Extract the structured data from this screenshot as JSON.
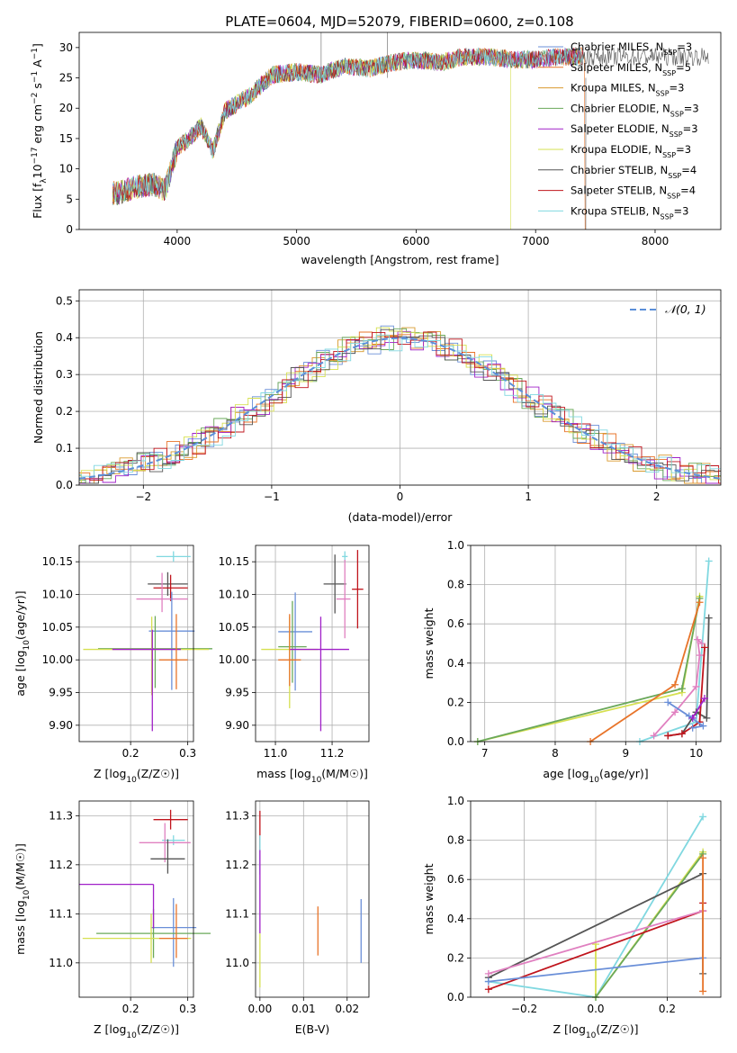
{
  "figure_title": "PLATE=0604, MJD=52079, FIBERID=0600, z=0.108",
  "colors": {
    "chabrier_miles": "#6a8fd8",
    "salpeter_miles": "#e8742a",
    "kroupa_miles": "#d99a2e",
    "chabrier_elodie": "#6aa85a",
    "salpeter_elodie": "#a020c8",
    "kroupa_elodie": "#d6e050",
    "chabrier_stelib": "#555555",
    "salpeter_stelib": "#c0141c",
    "kroupa_stelib": "#80d8e0",
    "pink": "#e080c0",
    "normal_curve": "#5b8fd9",
    "grid": "#b0b0b0"
  },
  "chart_data": [
    {
      "id": "spectrum",
      "type": "line",
      "title": "PLATE=0604, MJD=52079, FIBERID=0600, z=0.108",
      "xlabel": "wavelength [Angstrom, rest frame]",
      "ylabel": "Flux [f_λ 10^-17 erg cm^-2 s^-1 A^-1]",
      "xlim": [
        3180,
        8550
      ],
      "ylim": [
        0,
        32.5
      ],
      "xticks": [
        4000,
        5000,
        6000,
        7000,
        8000
      ],
      "yticks": [
        0,
        5,
        10,
        15,
        20,
        25,
        30
      ],
      "grid": false,
      "legend_position": "top-right",
      "legend": [
        {
          "label": "Chabrier MILES, N",
          "sub": "SSP",
          "tail": "=3",
          "color_key": "chabrier_miles"
        },
        {
          "label": "Salpeter MILES, N",
          "sub": "SSP",
          "tail": "=5",
          "color_key": "salpeter_miles"
        },
        {
          "label": "Kroupa MILES, N",
          "sub": "SSP",
          "tail": "=3",
          "color_key": "kroupa_miles"
        },
        {
          "label": "Chabrier ELODIE, N",
          "sub": "SSP",
          "tail": "=3",
          "color_key": "chabrier_elodie"
        },
        {
          "label": "Salpeter ELODIE, N",
          "sub": "SSP",
          "tail": "=3",
          "color_key": "salpeter_elodie"
        },
        {
          "label": "Kroupa ELODIE, N",
          "sub": "SSP",
          "tail": "=3",
          "color_key": "kroupa_elodie"
        },
        {
          "label": "Chabrier STELIB, N",
          "sub": "SSP",
          "tail": "=4",
          "color_key": "chabrier_stelib"
        },
        {
          "label": "Salpeter STELIB, N",
          "sub": "SSP",
          "tail": "=4",
          "color_key": "salpeter_stelib"
        },
        {
          "label": "Kroupa STELIB, N",
          "sub": "SSP",
          "tail": "=3",
          "color_key": "kroupa_stelib"
        }
      ],
      "data_envelope": {
        "wavelength": [
          3500,
          3650,
          3800,
          3900,
          4000,
          4100,
          4200,
          4300,
          4400,
          4600,
          4800,
          5000,
          5200,
          5400,
          5600,
          5800,
          6000,
          6200,
          6400,
          6600,
          6800,
          7000,
          7200,
          7400
        ],
        "flux": [
          6.0,
          7.0,
          7.5,
          6.5,
          13.5,
          15.0,
          17.0,
          13.0,
          19.5,
          22.0,
          25.5,
          26.0,
          25.5,
          27.0,
          26.5,
          27.5,
          28.0,
          27.5,
          28.5,
          28.5,
          28.0,
          28.0,
          28.5,
          28.5
        ]
      }
    },
    {
      "id": "residuals",
      "type": "bar",
      "xlabel": "(data-model)/error",
      "ylabel": "Normed distribution",
      "xlim": [
        -2.5,
        2.5
      ],
      "ylim": [
        0,
        0.53
      ],
      "xticks": [
        -2,
        -1,
        0,
        1,
        2
      ],
      "yticks": [
        0.0,
        0.1,
        0.2,
        0.3,
        0.4,
        0.5
      ],
      "grid": true,
      "legend_position": "top-right",
      "legend_label": "𝒩(0, 1)",
      "bin_width": 0.1,
      "series_color_keys": [
        "chabrier_miles",
        "salpeter_miles",
        "kroupa_miles",
        "chabrier_elodie",
        "salpeter_elodie",
        "kroupa_elodie",
        "chabrier_stelib",
        "salpeter_stelib",
        "kroupa_stelib"
      ]
    },
    {
      "id": "age_vs_Z",
      "type": "scatter",
      "xlabel": "Z [log10(Z/Z☉)]",
      "ylabel": "age  [log10(age/yr)]",
      "xlim": [
        0.11,
        0.31
      ],
      "ylim": [
        9.875,
        10.175
      ],
      "xticks": [
        0.2,
        0.3
      ],
      "yticks": [
        9.9,
        9.95,
        10.0,
        10.05,
        10.1,
        10.15
      ],
      "grid": true,
      "points": [
        {
          "x": 0.275,
          "xerr": [
            0.03,
            0.03
          ],
          "y": 10.158,
          "yerr": [
            0.008,
            0.008
          ],
          "color_key": "kroupa_stelib"
        },
        {
          "x": 0.265,
          "xerr": [
            0.035,
            0.035
          ],
          "y": 10.116,
          "yerr": [
            0.018,
            0.018
          ],
          "color_key": "chabrier_stelib"
        },
        {
          "x": 0.27,
          "xerr": [
            0.03,
            0.03
          ],
          "y": 10.11,
          "yerr": [
            0.02,
            0.02
          ],
          "color_key": "salpeter_stelib"
        },
        {
          "x": 0.255,
          "xerr": [
            0.045,
            0.045
          ],
          "y": 10.093,
          "yerr": [
            0.02,
            0.04
          ],
          "color_key": "pink"
        },
        {
          "x": 0.272,
          "xerr": [
            0.04,
            0.04
          ],
          "y": 10.044,
          "yerr": [
            0.09,
            0.06
          ],
          "color_key": "chabrier_miles"
        },
        {
          "x": 0.243,
          "xerr": [
            0.1,
            0.1
          ],
          "y": 10.017,
          "yerr": [
            0.06,
            0.05
          ],
          "color_key": "chabrier_elodie"
        },
        {
          "x": 0.237,
          "xerr": [
            0.12,
            0.1
          ],
          "y": 10.016,
          "yerr": [
            0.07,
            0.05
          ],
          "color_key": "kroupa_elodie"
        },
        {
          "x": 0.238,
          "xerr": [
            0.07,
            0.05
          ],
          "y": 10.016,
          "yerr": [
            0.125,
            0.03
          ],
          "color_key": "salpeter_elodie"
        },
        {
          "x": 0.28,
          "xerr": [
            0.03,
            0.02
          ],
          "y": 10.0,
          "yerr": [
            0.045,
            0.07
          ],
          "color_key": "salpeter_miles"
        }
      ]
    },
    {
      "id": "age_vs_mass",
      "type": "scatter",
      "xlabel": "mass [log10(M/M☉)]",
      "xlim": [
        10.93,
        11.33
      ],
      "ylim": [
        9.875,
        10.175
      ],
      "xticks": [
        11.0,
        11.2
      ],
      "yticks": [
        9.9,
        9.95,
        10.0,
        10.05,
        10.1,
        10.15
      ],
      "grid": true,
      "points": [
        {
          "x": 11.245,
          "xerr": [
            0.01,
            0.01
          ],
          "y": 10.158,
          "yerr": [
            0.008,
            0.008
          ],
          "color_key": "kroupa_stelib"
        },
        {
          "x": 11.21,
          "xerr": [
            0.04,
            0.04
          ],
          "y": 10.116,
          "yerr": [
            0.045,
            0.045
          ],
          "color_key": "chabrier_stelib"
        },
        {
          "x": 11.29,
          "xerr": [
            0.02,
            0.02
          ],
          "y": 10.108,
          "yerr": [
            0.06,
            0.06
          ],
          "color_key": "salpeter_stelib"
        },
        {
          "x": 11.245,
          "xerr": [
            0.03,
            0.02
          ],
          "y": 10.093,
          "yerr": [
            0.06,
            0.06
          ],
          "color_key": "pink"
        },
        {
          "x": 11.07,
          "xerr": [
            0.06,
            0.06
          ],
          "y": 10.043,
          "yerr": [
            0.09,
            0.06
          ],
          "color_key": "chabrier_miles"
        },
        {
          "x": 11.06,
          "xerr": [
            0.05,
            0.05
          ],
          "y": 10.02,
          "yerr": [
            0.055,
            0.07
          ],
          "color_key": "chabrier_elodie"
        },
        {
          "x": 11.05,
          "xerr": [
            0.1,
            0.1
          ],
          "y": 10.016,
          "yerr": [
            0.09,
            0.05
          ],
          "color_key": "kroupa_elodie"
        },
        {
          "x": 11.16,
          "xerr": [
            0.11,
            0.1
          ],
          "y": 10.016,
          "yerr": [
            0.125,
            0.05
          ],
          "color_key": "salpeter_elodie"
        },
        {
          "x": 11.05,
          "xerr": [
            0.04,
            0.04
          ],
          "y": 10.0,
          "yerr": [
            0.04,
            0.07
          ],
          "color_key": "salpeter_miles"
        }
      ]
    },
    {
      "id": "weight_vs_age",
      "type": "line",
      "xlabel": "age  [log10(age/yr)]",
      "ylabel": "mass weight",
      "xlim": [
        6.8,
        10.35
      ],
      "ylim": [
        0,
        1.0
      ],
      "xticks": [
        7,
        8,
        9,
        10
      ],
      "yticks": [
        0.0,
        0.2,
        0.4,
        0.6,
        0.8,
        1.0
      ],
      "grid": true,
      "series": [
        {
          "color_key": "kroupa_stelib",
          "x": [
            9.2,
            10.0,
            10.18
          ],
          "y": [
            0.0,
            0.1,
            0.92
          ]
        },
        {
          "color_key": "kroupa_elodie",
          "x": [
            6.9,
            9.8,
            10.05
          ],
          "y": [
            0.0,
            0.25,
            0.74
          ]
        },
        {
          "color_key": "chabrier_elodie",
          "x": [
            6.9,
            9.8,
            10.05
          ],
          "y": [
            0.0,
            0.27,
            0.73
          ]
        },
        {
          "color_key": "salpeter_miles",
          "x": [
            8.5,
            9.7,
            10.05
          ],
          "y": [
            0.0,
            0.29,
            0.71
          ]
        },
        {
          "color_key": "chabrier_stelib",
          "x": [
            9.6,
            9.8,
            10.0,
            10.15,
            10.18
          ],
          "y": [
            0.03,
            0.04,
            0.15,
            0.12,
            0.63
          ]
        },
        {
          "color_key": "salpeter_stelib",
          "x": [
            9.6,
            9.8,
            10.05,
            10.12
          ],
          "y": [
            0.03,
            0.04,
            0.1,
            0.48
          ]
        },
        {
          "color_key": "pink",
          "x": [
            9.4,
            9.7,
            10.0,
            10.05,
            10.02,
            10.08
          ],
          "y": [
            0.03,
            0.15,
            0.28,
            0.44,
            0.52,
            0.5
          ]
        },
        {
          "color_key": "chabrier_miles",
          "x": [
            9.6,
            9.9,
            10.1,
            9.95
          ],
          "y": [
            0.2,
            0.13,
            0.08,
            0.07
          ]
        },
        {
          "color_key": "salpeter_elodie",
          "x": [
            9.95,
            10.12
          ],
          "y": [
            0.12,
            0.22
          ]
        }
      ]
    },
    {
      "id": "mass_vs_Z",
      "type": "scatter",
      "xlabel": "Z [log10(Z/Z☉)]",
      "ylabel": "mass [log10(M/M☉)]",
      "xlim": [
        0.11,
        0.31
      ],
      "ylim": [
        10.93,
        11.33
      ],
      "xticks": [
        0.2,
        0.3
      ],
      "yticks": [
        11.0,
        11.1,
        11.2,
        11.3
      ],
      "grid": true,
      "points": [
        {
          "x": 0.27,
          "xerr": [
            0.03,
            0.03
          ],
          "y": 11.292,
          "yerr": [
            0.02,
            0.02
          ],
          "color_key": "salpeter_stelib"
        },
        {
          "x": 0.275,
          "xerr": [
            0.02,
            0.02
          ],
          "y": 11.25,
          "yerr": [
            0.01,
            0.01
          ],
          "color_key": "kroupa_stelib"
        },
        {
          "x": 0.26,
          "xerr": [
            0.045,
            0.045
          ],
          "y": 11.245,
          "yerr": [
            0.04,
            0.04
          ],
          "color_key": "pink"
        },
        {
          "x": 0.265,
          "xerr": [
            0.03,
            0.03
          ],
          "y": 11.212,
          "yerr": [
            0.03,
            0.04
          ],
          "color_key": "chabrier_stelib"
        },
        {
          "x": 0.275,
          "xerr": [
            0.04,
            0.04
          ],
          "y": 11.072,
          "yerr": [
            0.08,
            0.06
          ],
          "color_key": "chabrier_miles"
        },
        {
          "x": 0.24,
          "xerr": [
            0.1,
            0.1
          ],
          "y": 11.06,
          "yerr": [
            0.05,
            0.05
          ],
          "color_key": "chabrier_elodie"
        },
        {
          "x": 0.236,
          "xerr": [
            0.12,
            0.07
          ],
          "y": 11.05,
          "yerr": [
            0.05,
            0.05
          ],
          "color_key": "kroupa_elodie"
        },
        {
          "x": 0.24,
          "xerr": [
            0.13,
            0.0
          ],
          "y": 11.16,
          "yerr": [
            0.09,
            0.0
          ],
          "color_key": "salpeter_elodie"
        },
        {
          "x": 0.28,
          "xerr": [
            0.03,
            0.02
          ],
          "y": 11.05,
          "yerr": [
            0.04,
            0.07
          ],
          "color_key": "salpeter_miles"
        }
      ]
    },
    {
      "id": "mass_vs_ebv",
      "type": "scatter",
      "xlabel": "E(B-V)",
      "xlim": [
        -0.001,
        0.025
      ],
      "ylim": [
        10.93,
        11.33
      ],
      "xticks": [
        0.0,
        0.01,
        0.02
      ],
      "yticks": [
        11.0,
        11.1,
        11.2,
        11.3
      ],
      "grid": true,
      "points": [
        {
          "x": 0.0,
          "y": 11.27,
          "yerr": [
            0.04,
            0.04
          ],
          "color_key": "salpeter_stelib"
        },
        {
          "x": 0.0,
          "y": 11.22,
          "yerr": [
            0.04,
            0.04
          ],
          "color_key": "kroupa_stelib"
        },
        {
          "x": 0.0,
          "y": 11.13,
          "yerr": [
            0.07,
            0.1
          ],
          "color_key": "salpeter_elodie"
        },
        {
          "x": 0.0,
          "y": 11.0,
          "yerr": [
            0.05,
            0.06
          ],
          "color_key": "kroupa_elodie"
        },
        {
          "x": 0.0133,
          "y": 11.065,
          "yerr": [
            0.05,
            0.05
          ],
          "color_key": "salpeter_miles"
        },
        {
          "x": 0.0232,
          "y": 11.065,
          "yerr": [
            0.065,
            0.065
          ],
          "color_key": "chabrier_miles"
        }
      ]
    },
    {
      "id": "weight_vs_Z",
      "type": "line",
      "xlabel": "Z [log10(Z/Z☉)]",
      "ylabel": "mass weight",
      "xlim": [
        -0.35,
        0.35
      ],
      "ylim": [
        0,
        1.0
      ],
      "xticks": [
        -0.2,
        0.0,
        0.2
      ],
      "yticks": [
        0.0,
        0.2,
        0.4,
        0.6,
        0.8,
        1.0
      ],
      "grid": true,
      "series": [
        {
          "color_key": "kroupa_stelib",
          "x": [
            -0.3,
            0.0,
            0.3
          ],
          "y": [
            0.08,
            0.0,
            0.92
          ]
        },
        {
          "color_key": "kroupa_elodie",
          "x": [
            0.0,
            0.0,
            0.3
          ],
          "y": [
            0.27,
            0.0,
            0.74
          ]
        },
        {
          "color_key": "chabrier_elodie",
          "x": [
            0.0,
            0.3
          ],
          "y": [
            0.0,
            0.73
          ]
        },
        {
          "color_key": "chabrier_stelib",
          "x": [
            -0.3,
            0.3,
            0.3
          ],
          "y": [
            0.1,
            0.63,
            0.12
          ]
        },
        {
          "color_key": "salpeter_stelib",
          "x": [
            -0.3,
            0.3,
            0.3
          ],
          "y": [
            0.04,
            0.44,
            0.48
          ]
        },
        {
          "color_key": "pink",
          "x": [
            -0.3,
            0.3
          ],
          "y": [
            0.12,
            0.44
          ]
        },
        {
          "color_key": "chabrier_miles",
          "x": [
            -0.3,
            0.3
          ],
          "y": [
            0.08,
            0.2
          ]
        },
        {
          "color_key": "salpeter_miles",
          "x": [
            0.3,
            0.3
          ],
          "y": [
            0.03,
            0.71
          ]
        }
      ]
    }
  ]
}
